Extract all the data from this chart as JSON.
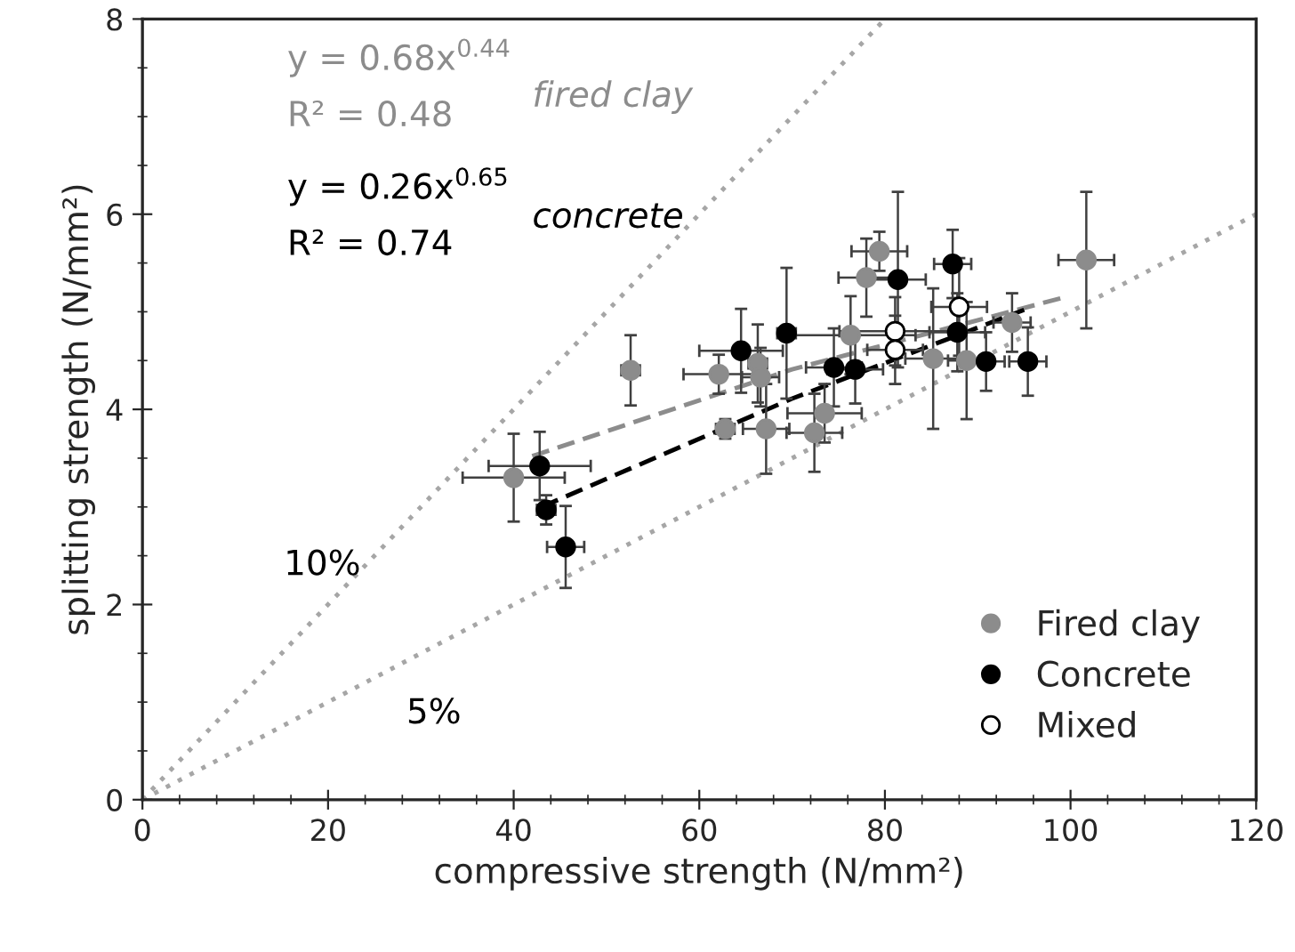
{
  "chart_data": {
    "type": "scatter",
    "xlabel": "compressive strength (N/mm²)",
    "ylabel": "splitting strength (N/mm²)",
    "xlim": [
      0,
      120
    ],
    "xticks": [
      0,
      20,
      40,
      60,
      80,
      100,
      120
    ],
    "ylim": [
      0,
      8
    ],
    "yticks": [
      0,
      2,
      4,
      6,
      8
    ],
    "grid": false,
    "legend": "bottom right",
    "series": [
      {
        "type": "line",
        "line_style": "dotted",
        "color": "#a6a6a6",
        "marker": "none",
        "x": [
          0,
          80
        ],
        "values": [
          0,
          8
        ]
      },
      {
        "type": "line",
        "line_style": "dotted",
        "color": "#a6a6a6",
        "marker": "none",
        "x": [
          0,
          120
        ],
        "values": [
          0,
          6
        ]
      },
      {
        "type": "line",
        "line_style": "dashed",
        "color": "#8c8c8c",
        "marker": "none",
        "x": [
          42,
          70,
          99
        ],
        "values": [
          3.52,
          4.41,
          5.14
        ]
      },
      {
        "type": "line",
        "line_style": "dashed",
        "color": "#000000",
        "marker": "none",
        "x": [
          43,
          70,
          95
        ],
        "values": [
          3.0,
          4.11,
          5.02
        ]
      },
      {
        "name": "Fired clay",
        "color": "#8c8c8c",
        "marker": "circle",
        "x": [
          40,
          52.6,
          62.1,
          62.8,
          66.3,
          66.6,
          67.2,
          72.4,
          73.5,
          76.3,
          78,
          79.4,
          85.2,
          88.8,
          93.7,
          101.7
        ],
        "values": [
          3.3,
          4.4,
          4.36,
          3.8,
          4.47,
          4.33,
          3.8,
          3.76,
          3.96,
          4.76,
          5.35,
          5.62,
          4.52,
          4.5,
          4.89,
          5.53
        ],
        "xerrors": [
          5.5,
          1,
          3.8,
          1,
          1,
          2,
          2.5,
          3,
          4,
          7,
          3,
          3,
          3,
          2,
          2,
          3
        ],
        "errors": [
          0.45,
          0.36,
          0.2,
          0.1,
          0.4,
          0.3,
          0.46,
          0.4,
          0.3,
          0.4,
          0.4,
          0.2,
          0.72,
          0.6,
          0.3,
          0.7
        ]
      },
      {
        "name": "Concrete",
        "color": "#000000",
        "marker": "circle",
        "x": [
          42.8,
          43.5,
          45.6,
          64.5,
          69.4,
          74.5,
          76.8,
          81.4,
          87.3,
          87.8,
          90.9,
          95.4
        ],
        "values": [
          3.42,
          2.97,
          2.59,
          4.6,
          4.78,
          4.43,
          4.41,
          5.33,
          5.49,
          4.79,
          4.49,
          4.49
        ],
        "xerrors": [
          5.5,
          1,
          2,
          4.5,
          1,
          3,
          3,
          3,
          2,
          3,
          2,
          2
        ],
        "errors": [
          0.35,
          0.15,
          0.42,
          0.43,
          0.67,
          0.4,
          0.35,
          0.9,
          0.35,
          0.4,
          0.3,
          0.35
        ]
      },
      {
        "name": "Mixed",
        "color": "#ffffff",
        "marker": "circle",
        "x": [
          81.1,
          81.1,
          88
        ],
        "values": [
          4.8,
          4.61,
          5.05
        ],
        "xerrors": [
          6,
          3,
          3
        ],
        "errors": [
          0.35,
          0.35,
          0.5
        ]
      }
    ],
    "annotations": [
      "y = 0.68x$^{0.44}$",
      "R² = 0.48",
      "y = 0.26x$^{0.65}$",
      "R² = 0.74",
      "fired clay",
      "concrete",
      "10%",
      "5%"
    ]
  }
}
